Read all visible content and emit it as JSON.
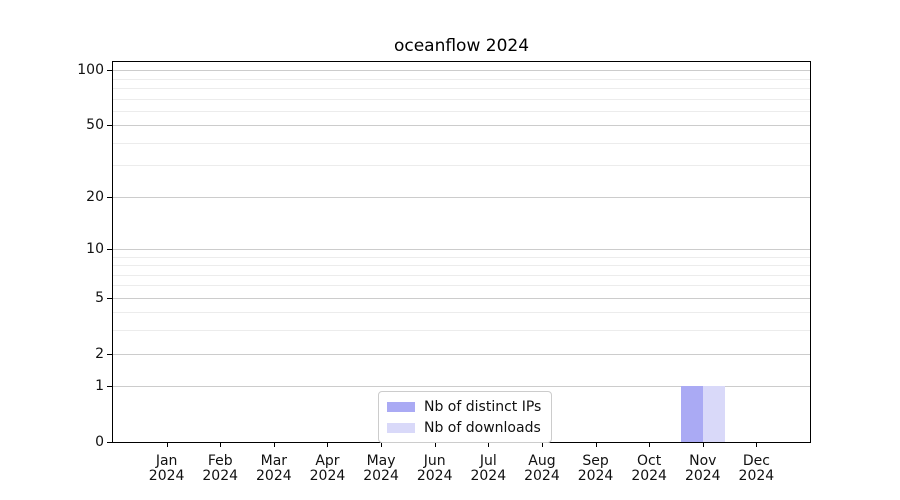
{
  "chart_data": {
    "type": "bar",
    "title": "oceanflow 2024",
    "categories": [
      "Jan",
      "Feb",
      "Mar",
      "Apr",
      "May",
      "Jun",
      "Jul",
      "Aug",
      "Sep",
      "Oct",
      "Nov",
      "Dec"
    ],
    "category_year": "2024",
    "series": [
      {
        "name": "Nb of distinct IPs",
        "color": "#aaaaf4",
        "values": [
          0,
          0,
          0,
          0,
          0,
          0,
          0,
          0,
          0,
          0,
          1,
          0
        ]
      },
      {
        "name": "Nb of downloads",
        "color": "#d9d9f9",
        "values": [
          0,
          0,
          0,
          0,
          0,
          0,
          0,
          0,
          0,
          0,
          1,
          0
        ]
      }
    ],
    "yscale": "log1p",
    "ylim": [
      0,
      111
    ],
    "y_major_ticks": [
      0,
      1,
      2,
      5,
      10,
      20,
      50,
      100
    ],
    "y_minor_ticks": [
      3,
      4,
      6,
      7,
      8,
      9,
      30,
      40,
      60,
      70,
      80,
      90
    ],
    "grid": "horizontal",
    "legend_position": "lower-center",
    "xlabel": "",
    "ylabel": ""
  },
  "colors": {
    "major_grid": "#cccccc",
    "minor_grid": "#ececec",
    "axis": "#000000"
  }
}
